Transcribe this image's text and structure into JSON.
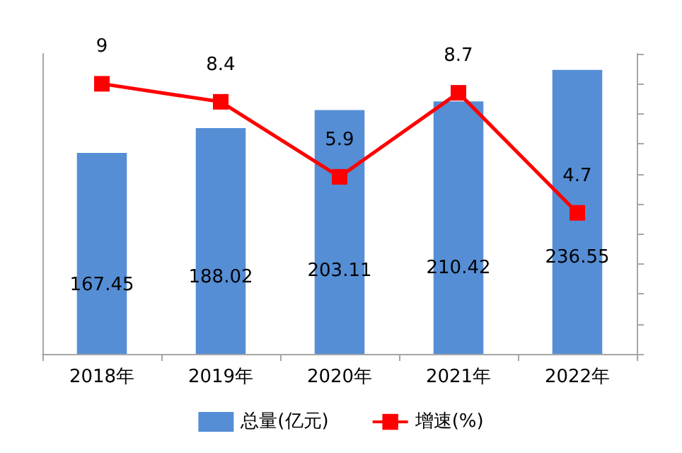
{
  "chart_data": {
    "type": "bar",
    "categories": [
      "2018年",
      "2019年",
      "2020年",
      "2021年",
      "2022年"
    ],
    "series": [
      {
        "name": "总量(亿元)",
        "color": "#558ed5",
        "values": [
          167.45,
          188.02,
          203.11,
          210.42,
          236.55
        ]
      },
      {
        "name": "增速(%)",
        "type": "line",
        "axis": "y2",
        "color": "#ff0000",
        "values": [
          9,
          8.4,
          5.9,
          8.7,
          4.7
        ]
      }
    ],
    "ylim": [
      0,
      250
    ],
    "y2lim": [
      0,
      10
    ],
    "y2ticks": [
      {
        "value": 0,
        "label": null
      },
      {
        "value": 1,
        "label": null
      },
      {
        "value": 2,
        "label": null
      },
      {
        "value": 3,
        "label": null
      },
      {
        "value": 4,
        "label": null
      },
      {
        "value": 5,
        "label": null
      },
      {
        "value": 6,
        "label": null
      },
      {
        "value": 7,
        "label": null
      },
      {
        "value": 8,
        "label": null
      },
      {
        "value": 9,
        "label": null
      },
      {
        "value": 10,
        "label": null
      }
    ],
    "data_labels": true,
    "tick_labels": "x",
    "legend": "bottom",
    "grid": false,
    "marker": "square",
    "line_style": "solid"
  }
}
